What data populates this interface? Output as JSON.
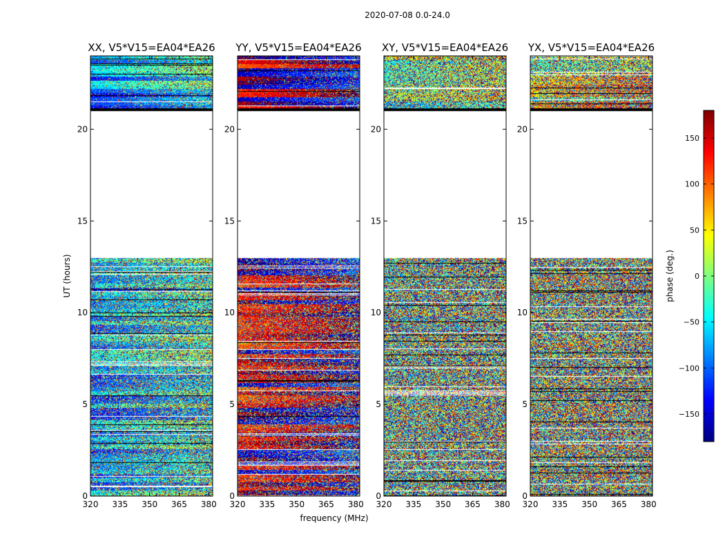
{
  "suptitle": "2020-07-08 0.0-24.0",
  "xlabel": "frequency (MHz)",
  "ylabel": "UT (hours)",
  "colorbar_label": "phase (deg.)",
  "chart_data": {
    "type": "heatmap",
    "colormap": "jet",
    "x_range": [
      320,
      382
    ],
    "y_range": [
      0,
      24
    ],
    "xticks": [
      320,
      335,
      350,
      365,
      380
    ],
    "yticks": [
      0,
      5,
      10,
      15,
      20
    ],
    "colorbar": {
      "range": [
        -180,
        180
      ],
      "ticks": [
        -150,
        -100,
        -50,
        0,
        50,
        100,
        150
      ],
      "tick_labels": [
        "−150",
        "−100",
        "−50",
        "0",
        "50",
        "100",
        "150"
      ]
    },
    "data_gap_hours": [
      13.0,
      21.0
    ],
    "panels": [
      {
        "title": "XX, V5*V15=EA04*EA26",
        "baseline_phase": -90,
        "coherence": 0.55
      },
      {
        "title": "YY, V5*V15=EA04*EA26",
        "baseline_phase": 150,
        "coherence": 0.65
      },
      {
        "title": "XY, V5*V15=EA04*EA26",
        "baseline_phase": -20,
        "coherence": 0.1
      },
      {
        "title": "YX, V5*V15=EA04*EA26",
        "baseline_phase": 20,
        "coherence": 0.1
      }
    ]
  }
}
